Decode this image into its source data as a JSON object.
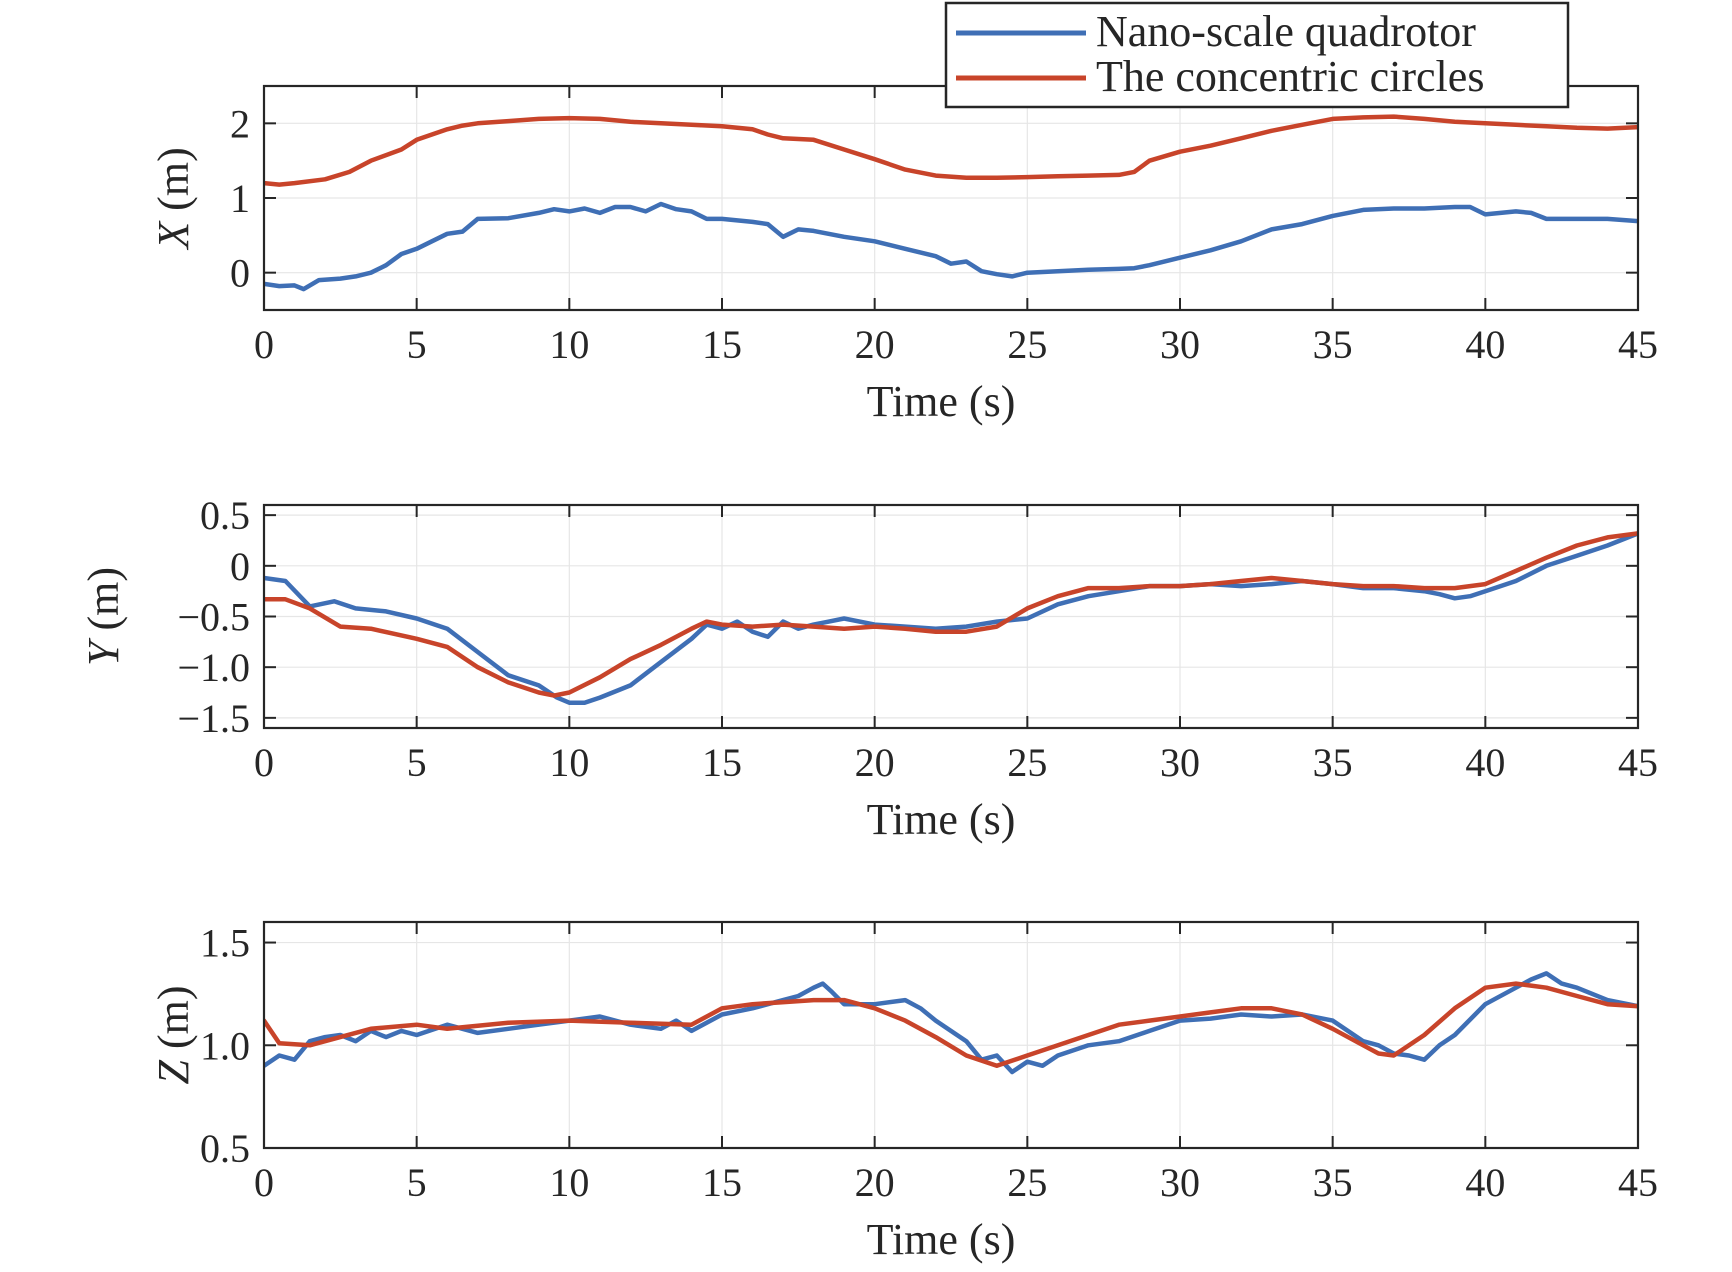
{
  "colors": {
    "nano": "#3F6FB5",
    "circles": "#C8442A",
    "axis": "#262626",
    "grid": "#E6E6E6"
  },
  "legend": {
    "placement": "top-right",
    "entries": [
      "Nano-scale quadrotor",
      "The concentric circles"
    ]
  },
  "chart_data": [
    {
      "type": "line",
      "title": "",
      "xlabel": "Time (s)",
      "ylabel_var": "X",
      "ylabel_unit": " (m)",
      "xlim": [
        0,
        45
      ],
      "ylim": [
        -0.5,
        2.5
      ],
      "xticks": [
        0,
        5,
        10,
        15,
        20,
        25,
        30,
        35,
        40,
        45
      ],
      "xtick_labels": [
        "0",
        "5",
        "10",
        "15",
        "20",
        "25",
        "30",
        "35",
        "40",
        "45"
      ],
      "yticks": [
        0,
        1,
        2
      ],
      "ytick_labels": [
        "0",
        "1",
        "2"
      ],
      "grid": true,
      "series": [
        {
          "name": "Nano-scale quadrotor",
          "x": [
            0,
            0.5,
            1,
            1.3,
            1.8,
            2.5,
            3,
            3.5,
            4,
            4.5,
            5,
            5.5,
            6,
            6.5,
            7,
            8,
            9,
            9.5,
            10,
            10.5,
            11,
            11.5,
            12,
            12.5,
            13,
            13.5,
            14,
            14.5,
            15,
            16,
            16.5,
            17,
            17.5,
            18,
            19,
            20,
            21,
            22,
            22.5,
            23,
            23.5,
            24,
            24.5,
            25,
            26,
            27,
            28,
            28.5,
            29,
            30,
            31,
            32,
            33,
            34,
            35,
            36,
            37,
            38,
            39,
            39.5,
            40,
            41,
            41.5,
            42,
            43,
            44,
            45
          ],
          "y": [
            -0.15,
            -0.18,
            -0.17,
            -0.22,
            -0.1,
            -0.08,
            -0.05,
            0.0,
            0.1,
            0.25,
            0.32,
            0.42,
            0.52,
            0.55,
            0.72,
            0.73,
            0.8,
            0.85,
            0.82,
            0.86,
            0.8,
            0.88,
            0.88,
            0.82,
            0.92,
            0.85,
            0.82,
            0.72,
            0.72,
            0.68,
            0.65,
            0.48,
            0.58,
            0.56,
            0.48,
            0.42,
            0.32,
            0.22,
            0.12,
            0.15,
            0.02,
            -0.02,
            -0.05,
            0.0,
            0.02,
            0.04,
            0.05,
            0.06,
            0.1,
            0.2,
            0.3,
            0.42,
            0.58,
            0.65,
            0.76,
            0.84,
            0.86,
            0.86,
            0.88,
            0.88,
            0.78,
            0.82,
            0.8,
            0.72,
            0.72,
            0.72,
            0.69
          ]
        },
        {
          "name": "The concentric circles",
          "x": [
            0,
            0.5,
            1,
            2,
            2.8,
            3.5,
            4.5,
            5,
            6,
            6.5,
            7,
            8,
            9,
            10,
            11,
            12,
            13,
            14,
            15,
            16,
            16.5,
            17,
            18,
            19,
            20,
            21,
            22,
            23,
            24,
            25,
            26,
            27,
            28,
            28.5,
            29,
            30,
            31,
            32,
            33,
            34,
            35,
            36,
            37,
            38,
            39,
            40,
            41,
            42,
            43,
            44,
            45
          ],
          "y": [
            1.2,
            1.18,
            1.2,
            1.25,
            1.35,
            1.5,
            1.65,
            1.78,
            1.92,
            1.97,
            2.0,
            2.03,
            2.06,
            2.07,
            2.06,
            2.02,
            2.0,
            1.98,
            1.96,
            1.92,
            1.85,
            1.8,
            1.78,
            1.65,
            1.52,
            1.38,
            1.3,
            1.27,
            1.27,
            1.28,
            1.29,
            1.3,
            1.31,
            1.35,
            1.5,
            1.62,
            1.7,
            1.8,
            1.9,
            1.98,
            2.06,
            2.08,
            2.09,
            2.06,
            2.02,
            2.0,
            1.98,
            1.96,
            1.94,
            1.93,
            1.95
          ]
        }
      ]
    },
    {
      "type": "line",
      "title": "",
      "xlabel": "Time (s)",
      "ylabel_var": "Y",
      "ylabel_unit": " (m)",
      "xlim": [
        0,
        45
      ],
      "ylim": [
        -1.6,
        0.6
      ],
      "xticks": [
        0,
        5,
        10,
        15,
        20,
        25,
        30,
        35,
        40,
        45
      ],
      "xtick_labels": [
        "0",
        "5",
        "10",
        "15",
        "20",
        "25",
        "30",
        "35",
        "40",
        "45"
      ],
      "yticks": [
        0.5,
        0,
        -0.5,
        -1.0,
        -1.5
      ],
      "ytick_labels": [
        "0.5",
        "0",
        "−0.5",
        "−1.0",
        "−1.5"
      ],
      "grid": true,
      "series": [
        {
          "name": "Nano-scale quadrotor",
          "x": [
            0,
            0.7,
            1.5,
            2.3,
            3,
            4,
            5,
            6,
            7,
            8,
            9,
            9.6,
            10,
            10.5,
            11,
            12,
            13,
            14,
            14.5,
            15,
            15.5,
            16,
            16.5,
            17,
            17.5,
            18,
            18.5,
            19,
            20,
            21,
            22,
            23,
            24,
            25,
            26,
            27,
            28,
            29,
            30,
            31,
            32,
            33,
            34,
            35,
            36,
            37,
            38,
            38.5,
            39,
            39.5,
            40,
            41,
            42,
            43,
            44,
            45
          ],
          "y": [
            -0.12,
            -0.15,
            -0.4,
            -0.35,
            -0.42,
            -0.45,
            -0.52,
            -0.62,
            -0.85,
            -1.08,
            -1.18,
            -1.3,
            -1.35,
            -1.35,
            -1.3,
            -1.18,
            -0.95,
            -0.72,
            -0.58,
            -0.62,
            -0.55,
            -0.65,
            -0.7,
            -0.55,
            -0.62,
            -0.58,
            -0.55,
            -0.52,
            -0.58,
            -0.6,
            -0.62,
            -0.6,
            -0.55,
            -0.52,
            -0.38,
            -0.3,
            -0.25,
            -0.2,
            -0.2,
            -0.18,
            -0.2,
            -0.18,
            -0.15,
            -0.18,
            -0.22,
            -0.22,
            -0.25,
            -0.28,
            -0.32,
            -0.3,
            -0.25,
            -0.15,
            0.0,
            0.1,
            0.2,
            0.32
          ]
        },
        {
          "name": "The concentric circles",
          "x": [
            0,
            0.7,
            1.5,
            2.5,
            3.5,
            5,
            6,
            7,
            8,
            9,
            9.5,
            10,
            11,
            12,
            13,
            14,
            14.5,
            15,
            16,
            17,
            18,
            19,
            20,
            21,
            22,
            23,
            24,
            25,
            26,
            27,
            28,
            29,
            30,
            31,
            32,
            33,
            34,
            35,
            36,
            37,
            38,
            39,
            40,
            41,
            42,
            43,
            44,
            45
          ],
          "y": [
            -0.33,
            -0.33,
            -0.42,
            -0.6,
            -0.62,
            -0.72,
            -0.8,
            -1.0,
            -1.15,
            -1.25,
            -1.28,
            -1.25,
            -1.1,
            -0.92,
            -0.78,
            -0.62,
            -0.55,
            -0.58,
            -0.6,
            -0.58,
            -0.6,
            -0.62,
            -0.6,
            -0.62,
            -0.65,
            -0.65,
            -0.6,
            -0.42,
            -0.3,
            -0.22,
            -0.22,
            -0.2,
            -0.2,
            -0.18,
            -0.15,
            -0.12,
            -0.15,
            -0.18,
            -0.2,
            -0.2,
            -0.22,
            -0.22,
            -0.18,
            -0.05,
            0.08,
            0.2,
            0.28,
            0.32
          ]
        }
      ]
    },
    {
      "type": "line",
      "title": "",
      "xlabel": "Time (s)",
      "ylabel_var": "Z",
      "ylabel_unit": " (m)",
      "xlim": [
        0,
        45
      ],
      "ylim": [
        0.5,
        1.6
      ],
      "xticks": [
        0,
        5,
        10,
        15,
        20,
        25,
        30,
        35,
        40,
        45
      ],
      "xtick_labels": [
        "0",
        "5",
        "10",
        "15",
        "20",
        "25",
        "30",
        "35",
        "40",
        "45"
      ],
      "yticks": [
        1.5,
        1.0,
        0.5
      ],
      "ytick_labels": [
        "1.5",
        "1.0",
        "0.5"
      ],
      "grid": true,
      "series": [
        {
          "name": "Nano-scale quadrotor",
          "x": [
            0,
            0.5,
            1,
            1.5,
            2,
            2.5,
            3,
            3.5,
            4,
            4.5,
            5,
            6,
            7,
            8,
            9,
            10,
            11,
            12,
            13,
            13.5,
            14,
            15,
            16,
            17,
            17.5,
            18,
            18.3,
            18.6,
            19,
            20,
            21,
            21.5,
            22,
            23,
            23.5,
            24,
            24.5,
            25,
            25.5,
            26,
            27,
            28,
            29,
            30,
            31,
            32,
            33,
            34,
            35,
            36,
            36.5,
            37,
            37.5,
            38,
            38.5,
            39,
            40,
            41,
            41.5,
            42,
            42.5,
            43,
            44,
            45
          ],
          "y": [
            0.9,
            0.95,
            0.93,
            1.02,
            1.04,
            1.05,
            1.02,
            1.07,
            1.04,
            1.07,
            1.05,
            1.1,
            1.06,
            1.08,
            1.1,
            1.12,
            1.14,
            1.1,
            1.08,
            1.12,
            1.07,
            1.15,
            1.18,
            1.22,
            1.24,
            1.28,
            1.3,
            1.26,
            1.2,
            1.2,
            1.22,
            1.18,
            1.12,
            1.02,
            0.93,
            0.95,
            0.87,
            0.92,
            0.9,
            0.95,
            1.0,
            1.02,
            1.07,
            1.12,
            1.13,
            1.15,
            1.14,
            1.15,
            1.12,
            1.02,
            1.0,
            0.96,
            0.95,
            0.93,
            1.0,
            1.05,
            1.2,
            1.28,
            1.32,
            1.35,
            1.3,
            1.28,
            1.22,
            1.19
          ]
        },
        {
          "name": "The concentric circles",
          "x": [
            0,
            0.5,
            1.5,
            2.5,
            3.5,
            5,
            6,
            8,
            10,
            12,
            14,
            15,
            16,
            18,
            19,
            20,
            21,
            22,
            23,
            24,
            25,
            26,
            27,
            28,
            29,
            30,
            31,
            32,
            33,
            34,
            35,
            36,
            36.5,
            37,
            38,
            39,
            40,
            41,
            42,
            43,
            44,
            45
          ],
          "y": [
            1.12,
            1.01,
            1.0,
            1.04,
            1.08,
            1.1,
            1.08,
            1.11,
            1.12,
            1.11,
            1.1,
            1.18,
            1.2,
            1.22,
            1.22,
            1.18,
            1.12,
            1.04,
            0.95,
            0.9,
            0.95,
            1.0,
            1.05,
            1.1,
            1.12,
            1.14,
            1.16,
            1.18,
            1.18,
            1.15,
            1.08,
            1.0,
            0.96,
            0.95,
            1.05,
            1.18,
            1.28,
            1.3,
            1.28,
            1.24,
            1.2,
            1.19
          ]
        }
      ]
    }
  ]
}
